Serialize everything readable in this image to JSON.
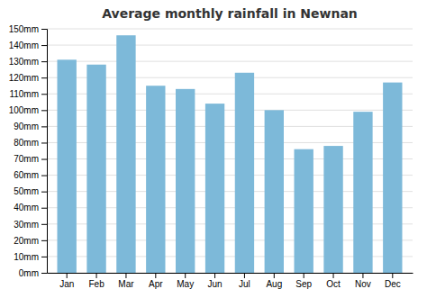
{
  "chart_data": {
    "type": "bar",
    "title": "Average monthly rainfall in Newnan",
    "categories": [
      "Jan",
      "Feb",
      "Mar",
      "Apr",
      "May",
      "Jun",
      "Jul",
      "Aug",
      "Sep",
      "Oct",
      "Nov",
      "Dec"
    ],
    "values": [
      131,
      128,
      146,
      115,
      113,
      104,
      123,
      100,
      76,
      78,
      99,
      117
    ],
    "color": "#7db9d9",
    "ylim": [
      0,
      150
    ],
    "yticks": [
      {
        "value": 0,
        "label": "0mm"
      },
      {
        "value": 10,
        "label": "10mm"
      },
      {
        "value": 20,
        "label": "20mm"
      },
      {
        "value": 30,
        "label": "30mm"
      },
      {
        "value": 40,
        "label": "40mm"
      },
      {
        "value": 50,
        "label": "50mm"
      },
      {
        "value": 60,
        "label": "60mm"
      },
      {
        "value": 70,
        "label": "70mm"
      },
      {
        "value": 80,
        "label": "80mm"
      },
      {
        "value": 90,
        "label": "90mm"
      },
      {
        "value": 100,
        "label": "100mm"
      },
      {
        "value": 110,
        "label": "110mm"
      },
      {
        "value": 120,
        "label": "120mm"
      },
      {
        "value": 130,
        "label": "130mm"
      },
      {
        "value": 140,
        "label": "140mm"
      },
      {
        "value": 150,
        "label": "150mm"
      }
    ],
    "grid": true
  }
}
